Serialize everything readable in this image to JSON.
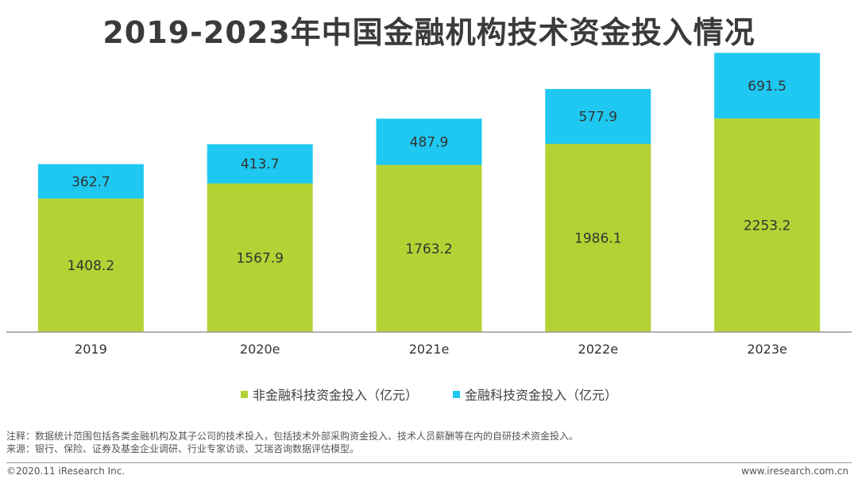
{
  "title": "2019-2023年中国金融机构技术资金投入情况",
  "colors": {
    "non_fintech": "#b3d334",
    "fintech": "#1ec8f0",
    "axis": "#999999",
    "label": "#333333"
  },
  "chart_data": {
    "type": "bar",
    "stacked": true,
    "title": "2019-2023年中国金融机构技术资金投入情况",
    "categories": [
      "2019",
      "2020e",
      "2021e",
      "2022e",
      "2023e"
    ],
    "series": [
      {
        "name": "非金融科技资金投入（亿元）",
        "values": [
          1408.2,
          1567.9,
          1763.2,
          1986.1,
          2253.2
        ]
      },
      {
        "name": "金融科技资金投入（亿元）",
        "values": [
          362.7,
          413.7,
          487.9,
          577.9,
          691.5
        ]
      }
    ],
    "xlabel": "",
    "ylabel": "",
    "ylim": [
      0,
      3000
    ],
    "grid": false,
    "legend": "bottom"
  },
  "legend": {
    "non_fintech_label": "非金融科技资金投入（亿元）",
    "fintech_label": "金融科技资金投入（亿元）"
  },
  "notes": {
    "line1": "注释：数据统计范围包括各类金融机构及其子公司的技术投入，包括技术外部采购资金投入、技术人员薪酬等在内的自研技术资金投入。",
    "line2": "来源：银行、保险、证券及基金企业调研、行业专家访谈、艾瑞咨询数据评估模型。"
  },
  "footer": {
    "copyright": "©2020.11 iResearch Inc.",
    "website": "www.iresearch.com.cn"
  }
}
